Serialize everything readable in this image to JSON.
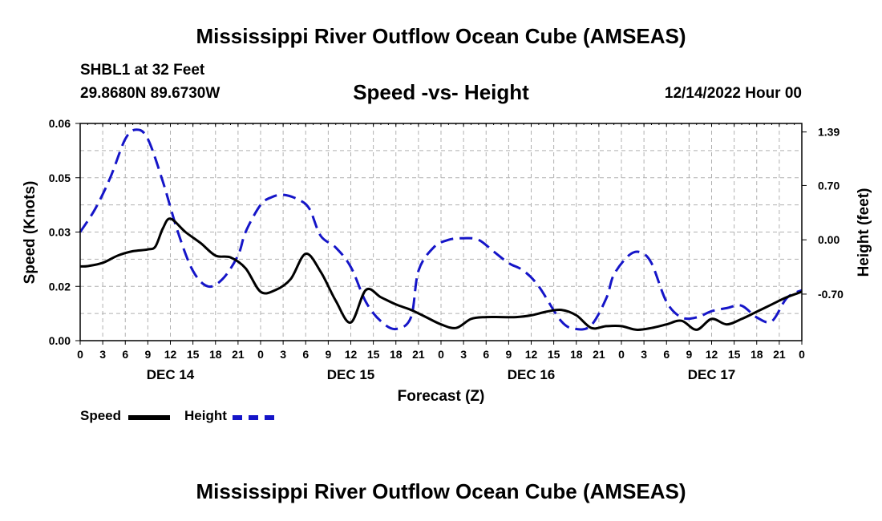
{
  "title": "Mississippi River Outflow Ocean Cube (AMSEAS)",
  "station": "SHBL1 at 32 Feet",
  "coords": "29.8680N  89.6730W",
  "subtitle": "Speed -vs- Height",
  "date_hour": "12/14/2022 Hour 00",
  "bottom_title": "Mississippi River Outflow Ocean Cube (AMSEAS)",
  "colors": {
    "speed": "#000000",
    "height": "#1515c8",
    "grid": "#b0b0b0"
  },
  "legend": {
    "speed": "Speed",
    "height": "Height"
  },
  "chart_data": {
    "type": "line",
    "xlabel": "Forecast (Z)",
    "ylabel_left": "Speed (Knots)",
    "ylabel_right": "Height (feet)",
    "x_range_hours": [
      0,
      96
    ],
    "x_tick_labels": [
      "0",
      "3",
      "6",
      "9",
      "12",
      "15",
      "18",
      "21",
      "0",
      "3",
      "6",
      "9",
      "12",
      "15",
      "18",
      "21",
      "0",
      "3",
      "6",
      "9",
      "12",
      "15",
      "18",
      "21",
      "0",
      "3",
      "6",
      "9",
      "12",
      "15",
      "18",
      "21",
      "0"
    ],
    "day_labels": [
      {
        "hour": 12,
        "label": "DEC 14"
      },
      {
        "hour": 36,
        "label": "DEC 15"
      },
      {
        "hour": 60,
        "label": "DEC 16"
      },
      {
        "hour": 84,
        "label": "DEC 17"
      }
    ],
    "left_axis": {
      "min": 0,
      "max": 0.06,
      "ticks": [
        "0.00",
        "0.02",
        "0.03",
        "0.05",
        "0.06"
      ]
    },
    "right_axis": {
      "min": -1.3,
      "max": 1.5,
      "ticks": [
        "1.39",
        "0.70",
        "0.00",
        "-0.70"
      ]
    },
    "series": [
      {
        "name": "Speed",
        "axis": "left",
        "style": "solid",
        "x": [
          0,
          1,
          3,
          5,
          7,
          9,
          10,
          11,
          12,
          14,
          16,
          18,
          20,
          22,
          24,
          26,
          28,
          30,
          32,
          34,
          36,
          38,
          40,
          42,
          44,
          46,
          48,
          50,
          52,
          54,
          56,
          58,
          60,
          62,
          64,
          66,
          68,
          70,
          72,
          74,
          76,
          78,
          80,
          82,
          84,
          86,
          88,
          90,
          92,
          94,
          96
        ],
        "y": [
          0.0205,
          0.0206,
          0.0215,
          0.0235,
          0.0247,
          0.0252,
          0.026,
          0.031,
          0.0337,
          0.03,
          0.027,
          0.0235,
          0.023,
          0.02,
          0.0135,
          0.014,
          0.017,
          0.024,
          0.019,
          0.011,
          0.005,
          0.014,
          0.012,
          0.01,
          0.0085,
          0.0065,
          0.0045,
          0.0035,
          0.006,
          0.0065,
          0.0065,
          0.0065,
          0.007,
          0.008,
          0.0085,
          0.007,
          0.0035,
          0.004,
          0.004,
          0.003,
          0.0035,
          0.0045,
          0.0055,
          0.003,
          0.006,
          0.0045,
          0.006,
          0.008,
          0.01,
          0.012,
          0.0135
        ]
      },
      {
        "name": "Height",
        "axis": "right",
        "style": "dashed",
        "x": [
          0,
          2,
          4,
          6,
          7.5,
          9,
          11,
          13,
          15,
          17,
          19,
          21,
          22,
          24,
          25.5,
          27,
          29,
          30.5,
          32,
          34,
          36,
          38,
          40,
          42,
          44,
          45,
          47,
          49,
          51,
          53,
          55,
          57,
          59,
          61,
          64,
          66,
          68,
          70,
          71,
          73,
          74.5,
          76,
          78,
          80,
          82,
          84,
          86,
          88,
          90,
          92,
          94,
          96
        ],
        "y": [
          0.1,
          0.4,
          0.8,
          1.3,
          1.42,
          1.3,
          0.75,
          0.1,
          -0.4,
          -0.6,
          -0.5,
          -0.2,
          0.1,
          0.45,
          0.55,
          0.58,
          0.52,
          0.4,
          0.05,
          -0.1,
          -0.35,
          -0.8,
          -1.05,
          -1.15,
          -1.0,
          -0.4,
          -0.1,
          0.0,
          0.02,
          0.0,
          -0.15,
          -0.3,
          -0.4,
          -0.6,
          -1.05,
          -1.15,
          -1.1,
          -0.75,
          -0.45,
          -0.2,
          -0.16,
          -0.3,
          -0.8,
          -1.0,
          -1.0,
          -0.92,
          -0.88,
          -0.85,
          -1.0,
          -1.05,
          -0.75,
          -0.65
        ]
      }
    ]
  }
}
